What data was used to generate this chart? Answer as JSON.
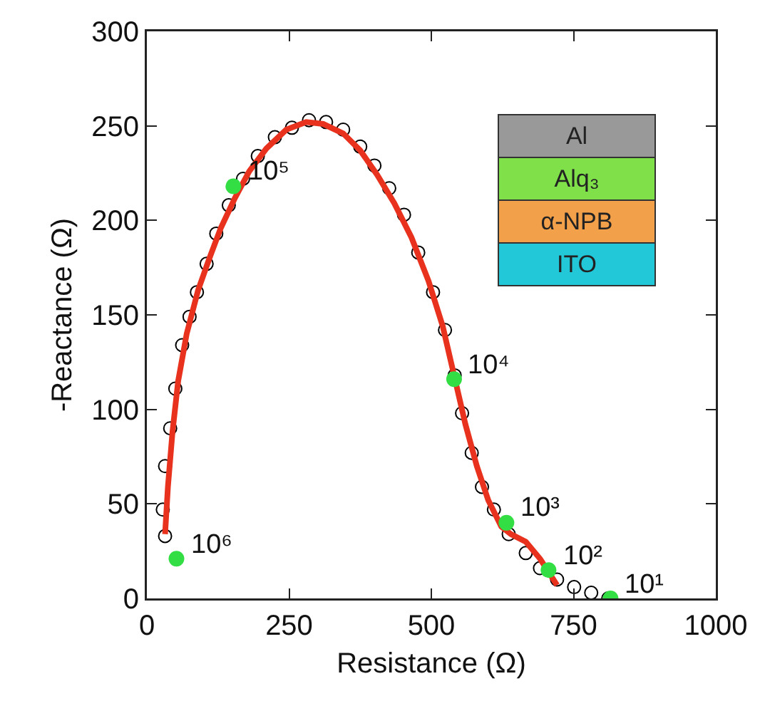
{
  "chart_data": {
    "type": "scatter",
    "xlabel": "Resistance (Ω)",
    "ylabel": "-Reactance (Ω)",
    "xlim": [
      0,
      1000
    ],
    "xticks": [
      0,
      250,
      500,
      750,
      1000
    ],
    "ylim": [
      0,
      300
    ],
    "yticks": [
      0,
      50,
      100,
      150,
      200,
      250,
      300
    ],
    "grid": false,
    "legend": false,
    "series": [
      {
        "marker": "circle",
        "color": "#000000",
        "x": [
          32,
          28,
          32,
          41,
          50,
          62,
          75,
          88,
          105,
          122,
          144,
          169,
          195,
          225,
          255,
          285,
          315,
          345,
          375,
          400,
          426,
          452,
          477,
          503,
          524,
          541,
          554,
          571,
          589,
          610,
          636,
          666,
          691,
          721,
          751,
          781,
          811
        ],
        "values": [
          33,
          47,
          70,
          90,
          111,
          134,
          149,
          162,
          177,
          193,
          208,
          222,
          234,
          244,
          249,
          253,
          252,
          248,
          239,
          229,
          217,
          203,
          183,
          162,
          142,
          118,
          98,
          77,
          59,
          47,
          34,
          24,
          16,
          10,
          6,
          3,
          0
        ]
      },
      {
        "type": "line",
        "marker": "none",
        "line_style": "solid",
        "color": "#e8321e",
        "x": [
          32,
          37,
          45,
          55,
          70,
          90,
          110,
          130,
          155,
          180,
          210,
          245,
          280,
          310,
          345,
          375,
          405,
          435,
          465,
          495,
          520,
          540,
          560,
          580,
          600,
          623,
          640,
          666,
          691,
          721
        ],
        "values": [
          34,
          59,
          88,
          115,
          140,
          163,
          180,
          196,
          212,
          226,
          238,
          248,
          252,
          251,
          246,
          237,
          224,
          209,
          191,
          168,
          144,
          118,
          92,
          70,
          52,
          38,
          34,
          30,
          21,
          7
        ]
      },
      {
        "marker": "circle",
        "color": "#33dd44",
        "x": [
          52,
          152,
          540,
          632,
          706,
          815
        ],
        "values": [
          21,
          218,
          116,
          40,
          15,
          0
        ]
      }
    ],
    "annotations": [
      {
        "text": "10⁶",
        "x": 52,
        "y": 21
      },
      {
        "text": "10⁵",
        "x": 152,
        "y": 218
      },
      {
        "text": "10⁴",
        "x": 540,
        "y": 116
      },
      {
        "text": "10³",
        "x": 632,
        "y": 40
      },
      {
        "text": "10²",
        "x": 706,
        "y": 15
      },
      {
        "text": "10¹",
        "x": 815,
        "y": 0
      },
      "Al",
      "Alq₃",
      "α-NPB",
      "ITO"
    ]
  }
}
